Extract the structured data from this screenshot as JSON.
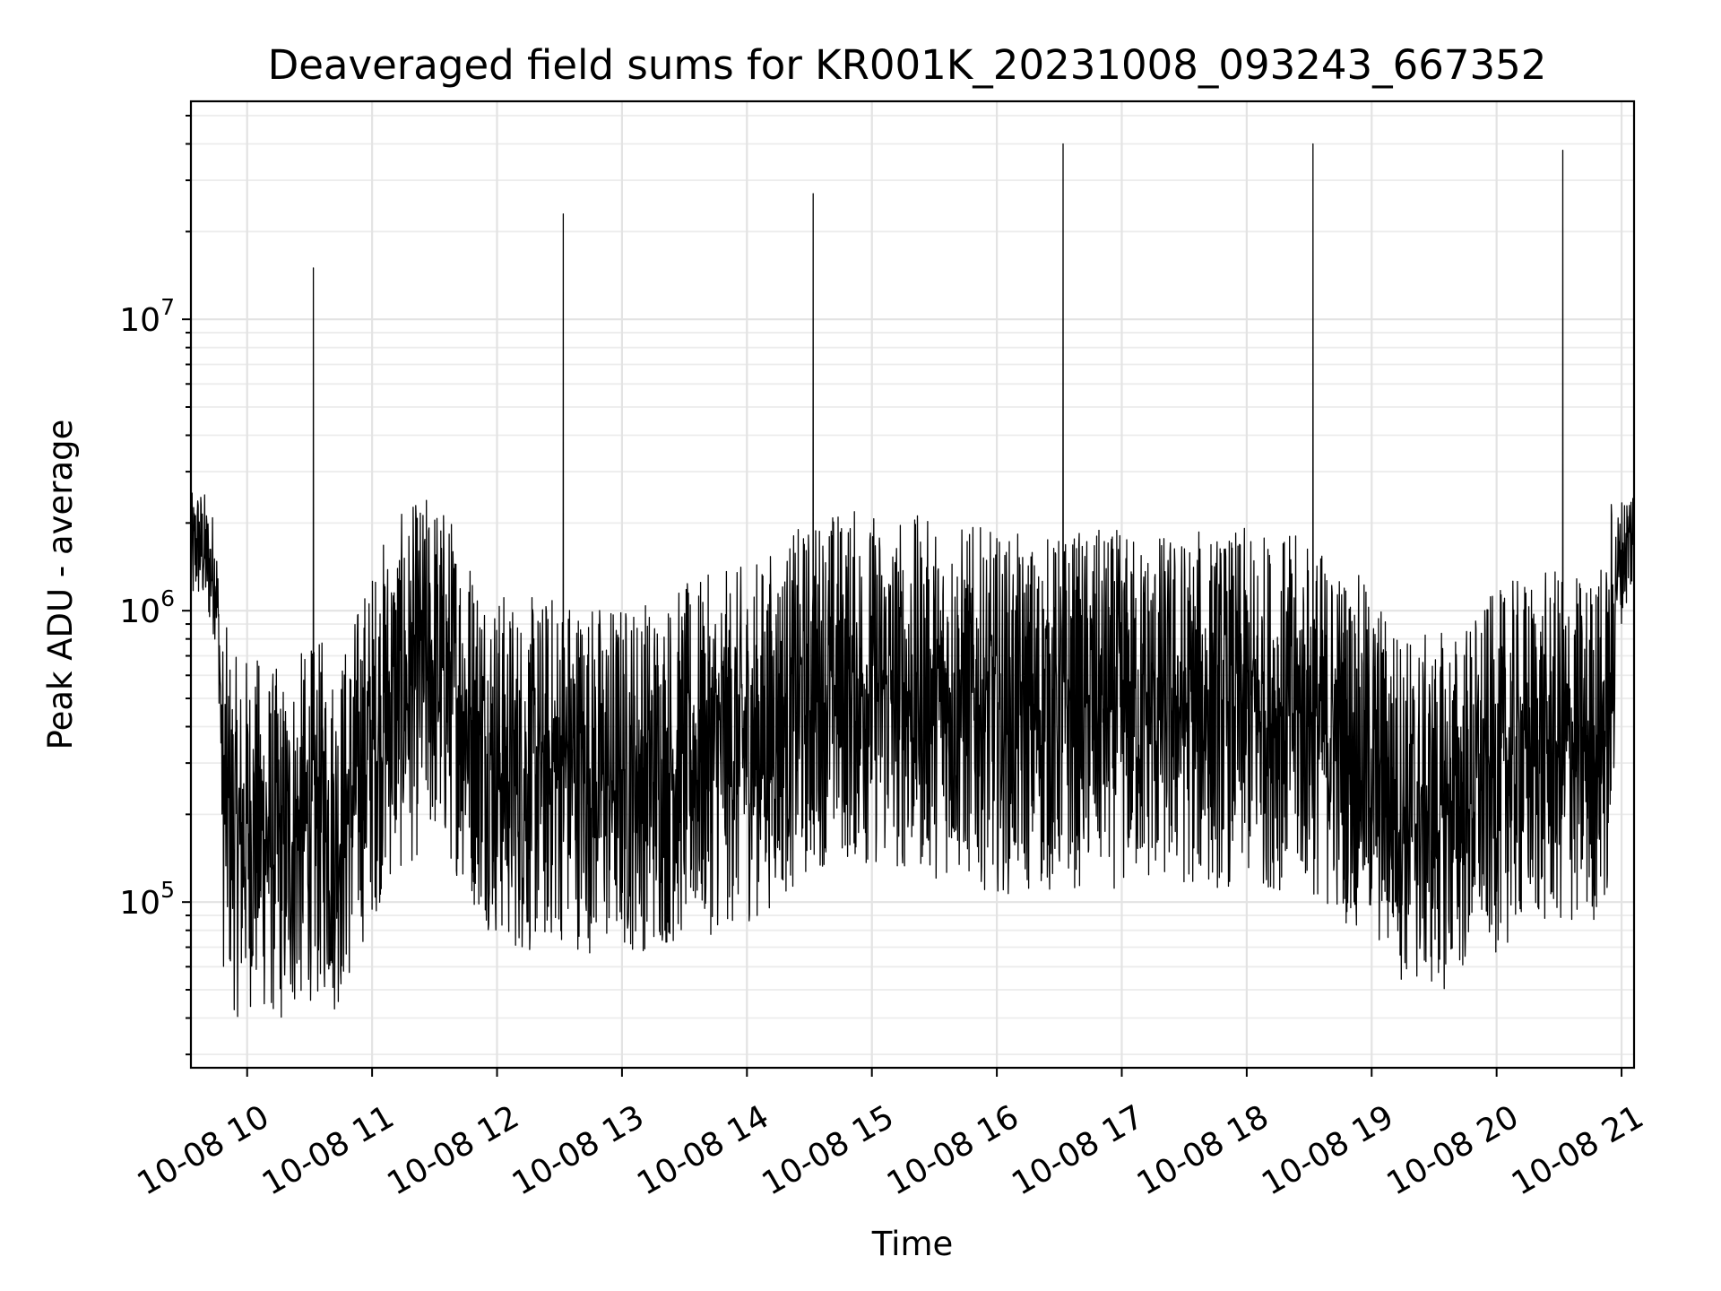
{
  "chart_data": {
    "type": "line",
    "title": "Deaveraged field sums for KR001K_20231008_093243_667352",
    "xlabel": "Time",
    "ylabel": "Peak ADU - average",
    "y_scale": "log",
    "grid": true,
    "line_color": "#000000",
    "xlim_hours": [
      9.55,
      21.1
    ],
    "ylim": [
      27000,
      56000000
    ],
    "x_ticks": [
      {
        "hour": 10,
        "label": "10-08 10"
      },
      {
        "hour": 11,
        "label": "10-08 11"
      },
      {
        "hour": 12,
        "label": "10-08 12"
      },
      {
        "hour": 13,
        "label": "10-08 13"
      },
      {
        "hour": 14,
        "label": "10-08 14"
      },
      {
        "hour": 15,
        "label": "10-08 15"
      },
      {
        "hour": 16,
        "label": "10-08 16"
      },
      {
        "hour": 17,
        "label": "10-08 17"
      },
      {
        "hour": 18,
        "label": "10-08 18"
      },
      {
        "hour": 19,
        "label": "10-08 19"
      },
      {
        "hour": 20,
        "label": "10-08 20"
      },
      {
        "hour": 21,
        "label": "10-08 21"
      }
    ],
    "y_ticks": [
      {
        "value": 100000,
        "base": "10",
        "exp": "5"
      },
      {
        "value": 1000000,
        "base": "10",
        "exp": "6"
      },
      {
        "value": 10000000,
        "base": "10",
        "exp": "7"
      }
    ],
    "series": [
      {
        "x_hours": [
          9.55,
          9.6,
          9.65,
          9.7,
          9.75,
          9.78,
          9.8,
          9.85,
          9.9,
          9.95,
          10.0,
          10.1,
          10.2,
          10.3,
          10.4,
          10.5,
          10.53,
          10.56,
          10.6,
          10.7,
          10.8,
          10.9,
          11.0,
          11.1,
          11.2,
          11.3,
          11.4,
          11.5,
          11.6,
          11.7,
          11.8,
          11.9,
          12.0,
          12.1,
          12.2,
          12.3,
          12.4,
          12.5,
          12.53,
          12.56,
          12.6,
          12.7,
          12.8,
          12.9,
          13.0,
          13.1,
          13.2,
          13.3,
          13.4,
          13.5,
          13.6,
          13.7,
          13.8,
          13.9,
          14.0,
          14.1,
          14.2,
          14.3,
          14.4,
          14.5,
          14.53,
          14.56,
          14.6,
          14.7,
          14.8,
          14.9,
          15.0,
          15.1,
          15.2,
          15.3,
          15.4,
          15.5,
          15.6,
          15.7,
          15.8,
          15.9,
          16.0,
          16.1,
          16.2,
          16.3,
          16.4,
          16.5,
          16.53,
          16.56,
          16.6,
          16.7,
          16.8,
          16.9,
          17.0,
          17.1,
          17.2,
          17.3,
          17.4,
          17.5,
          17.6,
          17.7,
          17.8,
          17.9,
          18.0,
          18.1,
          18.2,
          18.3,
          18.4,
          18.5,
          18.53,
          18.56,
          18.6,
          18.7,
          18.8,
          18.9,
          19.0,
          19.1,
          19.2,
          19.3,
          19.4,
          19.5,
          19.6,
          19.7,
          19.8,
          19.9,
          20.0,
          20.1,
          20.2,
          20.3,
          20.4,
          20.5,
          20.53,
          20.56,
          20.6,
          20.7,
          20.8,
          20.9,
          20.95,
          21.0,
          21.05,
          21.1
        ],
        "values": [
          1500000,
          1700000,
          1600000,
          1400000,
          1300000,
          700000,
          250000,
          200000,
          170000,
          160000,
          180000,
          170000,
          160000,
          150000,
          170000,
          190000,
          15000000,
          180000,
          200000,
          170000,
          200000,
          280000,
          350000,
          450000,
          500000,
          550000,
          600000,
          650000,
          550000,
          500000,
          400000,
          350000,
          300000,
          280000,
          270000,
          270000,
          280000,
          300000,
          23000000,
          300000,
          290000,
          280000,
          270000,
          270000,
          270000,
          280000,
          280000,
          280000,
          290000,
          300000,
          310000,
          320000,
          330000,
          340000,
          350000,
          370000,
          400000,
          430000,
          460000,
          500000,
          27000000,
          520000,
          550000,
          560000,
          560000,
          550000,
          540000,
          530000,
          520000,
          520000,
          510000,
          500000,
          500000,
          490000,
          480000,
          460000,
          450000,
          440000,
          440000,
          440000,
          440000,
          450000,
          40000000,
          460000,
          460000,
          460000,
          460000,
          460000,
          460000,
          460000,
          460000,
          460000,
          460000,
          460000,
          460000,
          460000,
          460000,
          460000,
          460000,
          460000,
          460000,
          450000,
          440000,
          430000,
          40000000,
          420000,
          400000,
          380000,
          350000,
          320000,
          290000,
          260000,
          230000,
          210000,
          200000,
          200000,
          210000,
          220000,
          240000,
          260000,
          280000,
          300000,
          320000,
          330000,
          330000,
          330000,
          38000000,
          330000,
          330000,
          330000,
          350000,
          400000,
          1300000,
          1500000,
          1700000,
          1900000
        ]
      }
    ]
  }
}
